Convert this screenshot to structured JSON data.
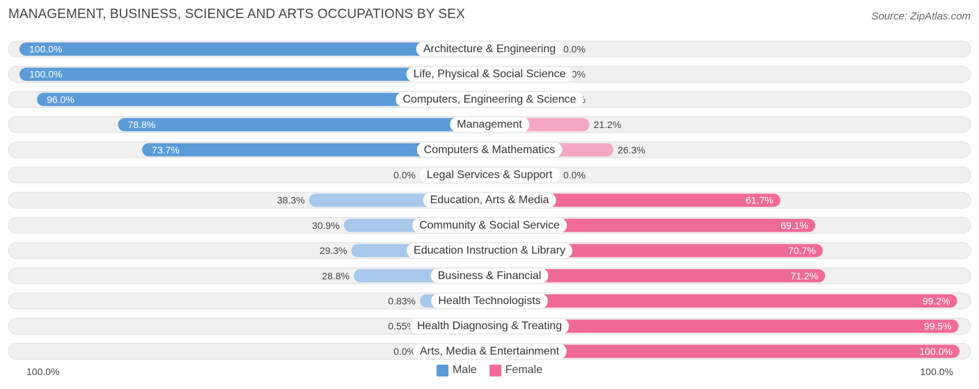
{
  "title": "MANAGEMENT, BUSINESS, SCIENCE AND ARTS OCCUPATIONS BY SEX",
  "source": "Source: ZipAtlas.com",
  "axis": {
    "left_label": "100.0%",
    "right_label": "100.0%"
  },
  "legend": {
    "male_label": "Male",
    "female_label": "Female"
  },
  "colors": {
    "male_strong": "#5b9bd8",
    "male_light": "#a8c9ec",
    "female_strong": "#f06a96",
    "female_light": "#f5a8c3",
    "track": "#f0f0f0"
  },
  "chart_data": {
    "type": "bar",
    "orientation": "horizontal-diverging",
    "categories": [
      "Architecture & Engineering",
      "Life, Physical & Social Science",
      "Computers, Engineering & Science",
      "Management",
      "Computers & Mathematics",
      "Legal Services & Support",
      "Education, Arts & Media",
      "Community & Social Service",
      "Education Instruction & Library",
      "Business & Financial",
      "Health Technologists",
      "Health Diagnosing & Treating",
      "Arts, Media & Entertainment"
    ],
    "series": [
      {
        "name": "Male",
        "values": [
          100.0,
          100.0,
          96.0,
          78.8,
          73.7,
          0.0,
          38.3,
          30.9,
          29.3,
          28.8,
          0.83,
          0.55,
          0.0
        ],
        "labels": [
          "100.0%",
          "100.0%",
          "96.0%",
          "78.8%",
          "73.7%",
          "0.0%",
          "38.3%",
          "30.9%",
          "29.3%",
          "28.8%",
          "0.83%",
          "0.55%",
          "0.0%"
        ]
      },
      {
        "name": "Female",
        "values": [
          0.0,
          0.0,
          4.0,
          21.2,
          26.3,
          0.0,
          61.7,
          69.1,
          70.7,
          71.2,
          99.2,
          99.5,
          100.0
        ],
        "labels": [
          "0.0%",
          "0.0%",
          "4.0%",
          "21.2%",
          "26.3%",
          "0.0%",
          "61.7%",
          "69.1%",
          "70.7%",
          "71.2%",
          "99.2%",
          "99.5%",
          "100.0%"
        ]
      }
    ],
    "xlim": [
      0,
      100
    ],
    "legend_position": "bottom-center"
  }
}
